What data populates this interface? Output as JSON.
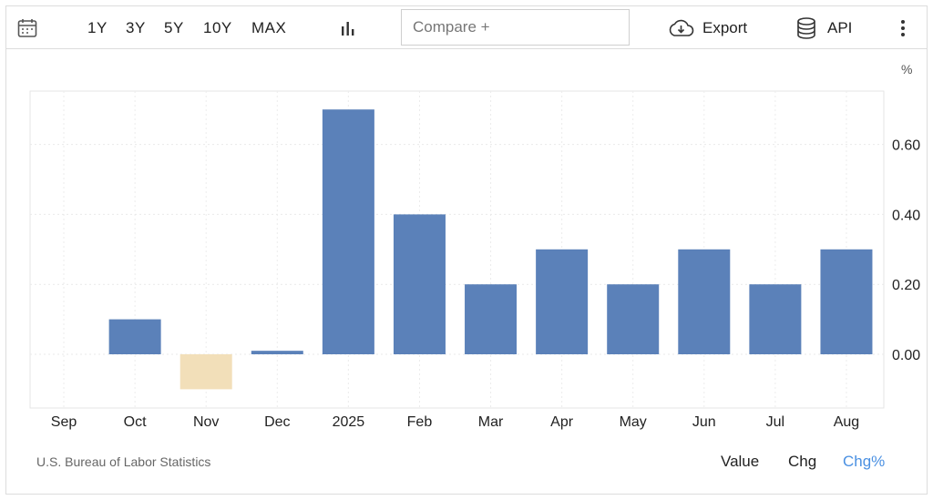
{
  "toolbar": {
    "calendar_icon": "calendar-icon",
    "ranges": [
      "1Y",
      "3Y",
      "5Y",
      "10Y",
      "MAX"
    ],
    "chart_type_icon": "bar-chart-icon",
    "compare_placeholder": "Compare +",
    "export_label": "Export",
    "export_icon": "cloud-download-icon",
    "api_label": "API",
    "api_icon": "database-icon",
    "more_icon": "more-vertical-icon"
  },
  "unit_label": "%",
  "source": "U.S. Bureau of Labor Statistics",
  "view_tabs": [
    {
      "label": "Value",
      "active": false
    },
    {
      "label": "Chg",
      "active": false
    },
    {
      "label": "Chg%",
      "active": true
    }
  ],
  "colors": {
    "positive": "#5b81b9",
    "negative": "#f2dfb9",
    "active_tab": "#4a90e2",
    "grid": "#e6e6e6"
  },
  "chart_data": {
    "type": "bar",
    "categories": [
      "Sep",
      "Oct",
      "Nov",
      "Dec",
      "2025",
      "Feb",
      "Mar",
      "Apr",
      "May",
      "Jun",
      "Jul",
      "Aug"
    ],
    "values": [
      0.0,
      0.1,
      -0.1,
      0.01,
      0.7,
      0.4,
      0.2,
      0.3,
      0.2,
      0.3,
      0.2,
      0.3
    ],
    "yticks": [
      "0.60",
      "0.40",
      "0.20",
      "0.00"
    ],
    "ylim": [
      -0.16,
      0.75
    ],
    "grid": true
  }
}
